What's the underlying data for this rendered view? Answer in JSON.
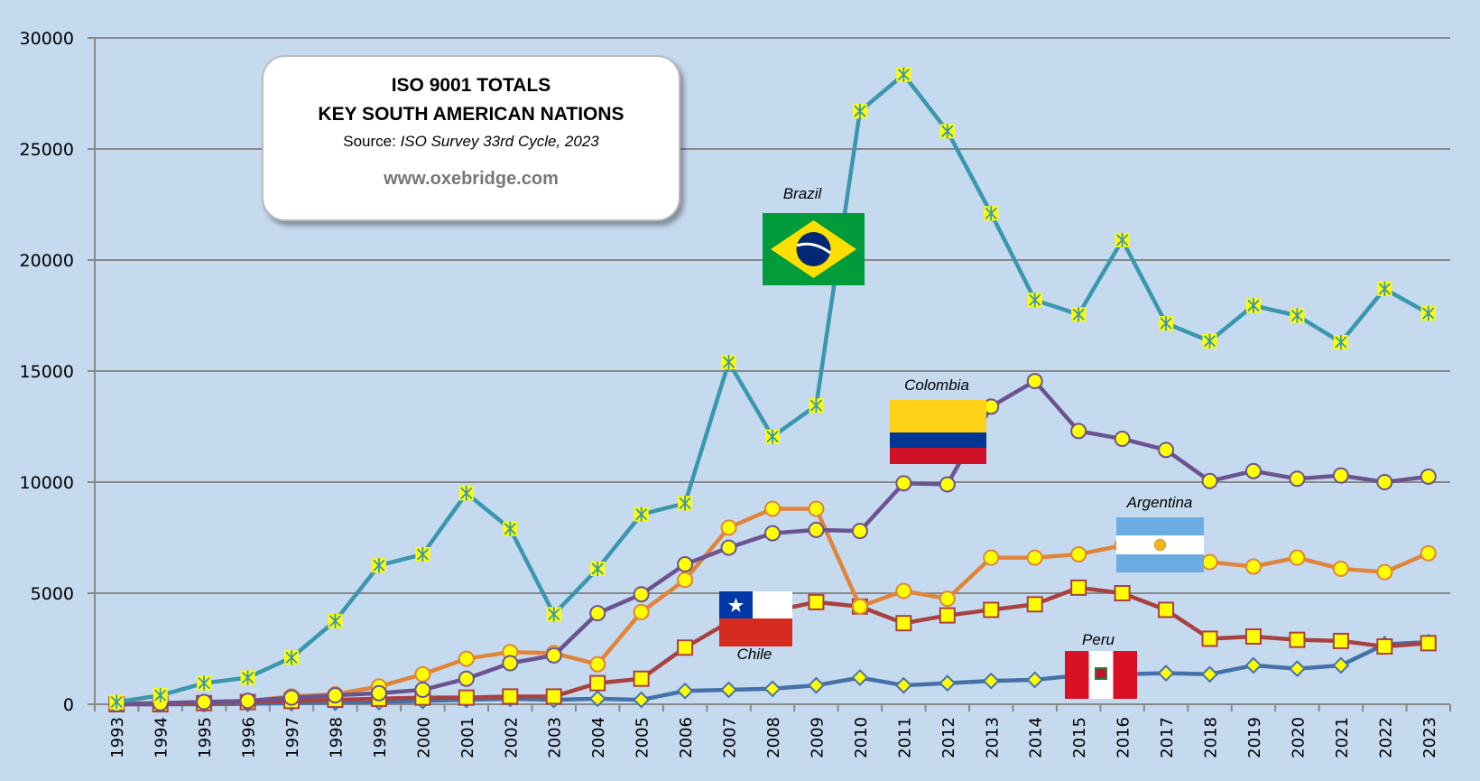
{
  "title_box": {
    "line1": "ISO 9001 TOTALS",
    "line2": "KEY SOUTH AMERICAN NATIONS",
    "source_label": "Source:",
    "source_value": "ISO Survey 33rd Cycle, 2023",
    "website": "www.oxebridge.com"
  },
  "flag_labels": {
    "brazil": "Brazil",
    "colombia": "Colombia",
    "chile": "Chile",
    "argentina": "Argentina",
    "peru": "Peru"
  },
  "chart_data": {
    "type": "line",
    "title": "ISO 9001 TOTALS - KEY SOUTH AMERICAN NATIONS",
    "xlabel": "",
    "ylabel": "",
    "ylim": [
      0,
      30000
    ],
    "yticks": [
      0,
      5000,
      10000,
      15000,
      20000,
      25000,
      30000
    ],
    "grid": true,
    "legend": "flags next to lines",
    "categories": [
      "1993",
      "1994",
      "1995",
      "1996",
      "1997",
      "1998",
      "1999",
      "2000",
      "2001",
      "2002",
      "2003",
      "2004",
      "2005",
      "2006",
      "2007",
      "2008",
      "2009",
      "2010",
      "2011",
      "2012",
      "2013",
      "2014",
      "2015",
      "2016",
      "2017",
      "2018",
      "2019",
      "2020",
      "2021",
      "2022",
      "2023"
    ],
    "series": [
      {
        "name": "Brazil",
        "color": "#3a97ae",
        "marker": "square-star",
        "values": [
          100,
          400,
          950,
          1200,
          2100,
          3750,
          6250,
          6750,
          9500,
          7900,
          4050,
          6100,
          8550,
          9050,
          15400,
          12050,
          13450,
          26700,
          28350,
          25800,
          22100,
          18200,
          17550,
          20900,
          17150,
          16350,
          17950,
          17500,
          16300,
          18700,
          17600
        ]
      },
      {
        "name": "Colombia",
        "color": "#6b538f",
        "marker": "circle",
        "values": [
          0,
          50,
          100,
          150,
          300,
          400,
          500,
          650,
          1150,
          1850,
          2200,
          4100,
          4950,
          6300,
          7050,
          7700,
          7850,
          7800,
          9950,
          9900,
          13400,
          14550,
          12300,
          11950,
          11450,
          10050,
          10500,
          10150,
          10300,
          10000,
          10250
        ]
      },
      {
        "name": "Argentina",
        "color": "#e0843a",
        "marker": "circle",
        "values": [
          50,
          50,
          100,
          150,
          350,
          450,
          800,
          1350,
          2050,
          2350,
          2300,
          1800,
          4150,
          5600,
          7950,
          8800,
          8800,
          4400,
          5100,
          4750,
          6600,
          6600,
          6750,
          7150,
          7100,
          6400,
          6200,
          6600,
          6100,
          5950,
          6800
        ]
      },
      {
        "name": "Chile",
        "color": "#a84140",
        "marker": "square",
        "values": [
          0,
          0,
          50,
          100,
          150,
          200,
          250,
          300,
          300,
          350,
          350,
          950,
          1150,
          2550,
          3700,
          4200,
          4600,
          4400,
          3650,
          4000,
          4250,
          4500,
          5250,
          5000,
          4250,
          2950,
          3050,
          2900,
          2850,
          2600,
          2750
        ]
      },
      {
        "name": "Peru",
        "color": "#4472a8",
        "marker": "diamond",
        "values": [
          0,
          0,
          0,
          20,
          50,
          80,
          100,
          150,
          200,
          250,
          200,
          250,
          200,
          600,
          650,
          700,
          850,
          1200,
          850,
          950,
          1050,
          1100,
          1300,
          1350,
          1400,
          1350,
          1750,
          1600,
          1750,
          2700,
          2800
        ]
      }
    ]
  }
}
